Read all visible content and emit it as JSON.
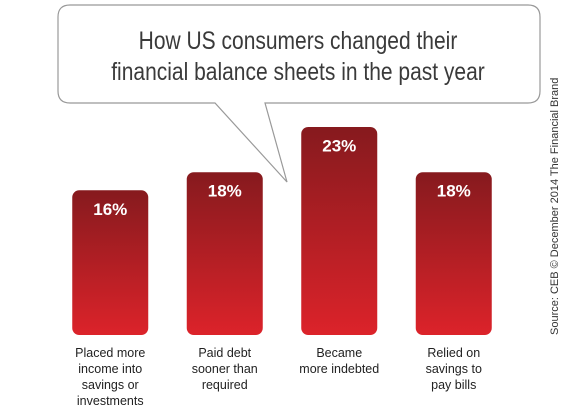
{
  "chart_data": {
    "type": "bar",
    "title": "How US consumers changed their\nfinancial balance sheets in the past year",
    "categories": [
      "Placed more\nincome into\nsavings or\ninvestments",
      "Paid debt\nsooner than\nrequired",
      "Became\nmore indebted",
      "Relied on\nsavings to\npay bills"
    ],
    "values": [
      16,
      18,
      23,
      18
    ],
    "value_labels": [
      "16%",
      "18%",
      "23%",
      "18%"
    ],
    "gradient": [
      "#861a1e",
      "#dc232a"
    ],
    "source": "Source: CEB © December 2014 The Financial Brand"
  }
}
